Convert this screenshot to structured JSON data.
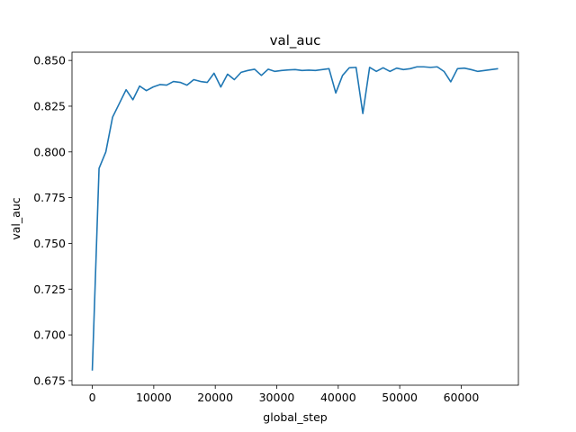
{
  "chart_data": {
    "type": "line",
    "title": "val_auc",
    "xlabel": "global_step",
    "ylabel": "val_auc",
    "xlim": [
      -3300,
      69300
    ],
    "ylim": [
      0.6725,
      0.8545
    ],
    "xticks": [
      0,
      10000,
      20000,
      30000,
      40000,
      50000,
      60000
    ],
    "xtick_labels": [
      "0",
      "10000",
      "20000",
      "30000",
      "40000",
      "50000",
      "60000"
    ],
    "yticks": [
      0.675,
      0.7,
      0.725,
      0.75,
      0.775,
      0.8,
      0.825,
      0.85
    ],
    "ytick_labels": [
      "0.675",
      "0.700",
      "0.725",
      "0.750",
      "0.775",
      "0.800",
      "0.825",
      "0.850"
    ],
    "grid": false,
    "legend": "none",
    "series": [
      {
        "color": "#1f77b4",
        "x": [
          0,
          1100,
          2200,
          3300,
          4400,
          5500,
          6600,
          7700,
          8800,
          9900,
          11000,
          12100,
          13200,
          14300,
          15400,
          16500,
          17600,
          18700,
          19800,
          20900,
          22000,
          23100,
          24200,
          25300,
          26400,
          27500,
          28600,
          29700,
          30800,
          31900,
          33000,
          34100,
          35200,
          36300,
          37400,
          38500,
          39600,
          40700,
          41800,
          42900,
          44000,
          45100,
          46200,
          47300,
          48400,
          49500,
          50600,
          51700,
          52800,
          53900,
          55000,
          56100,
          57200,
          58300,
          59400,
          60500,
          61600,
          62700,
          63800,
          64900,
          66000
        ],
        "y": [
          0.6805,
          0.791,
          0.8,
          0.819,
          0.8265,
          0.834,
          0.8285,
          0.836,
          0.8335,
          0.8355,
          0.8368,
          0.8365,
          0.8385,
          0.838,
          0.8365,
          0.8395,
          0.8385,
          0.838,
          0.843,
          0.8355,
          0.8425,
          0.8395,
          0.8435,
          0.8445,
          0.8452,
          0.8418,
          0.8452,
          0.844,
          0.8445,
          0.8448,
          0.845,
          0.8445,
          0.8447,
          0.8445,
          0.845,
          0.8455,
          0.8322,
          0.8418,
          0.846,
          0.8462,
          0.821,
          0.8462,
          0.844,
          0.846,
          0.844,
          0.8458,
          0.845,
          0.8455,
          0.8465,
          0.8465,
          0.8462,
          0.8465,
          0.844,
          0.8383,
          0.8455,
          0.8458,
          0.845,
          0.844,
          0.8445,
          0.845,
          0.8455
        ]
      }
    ]
  }
}
